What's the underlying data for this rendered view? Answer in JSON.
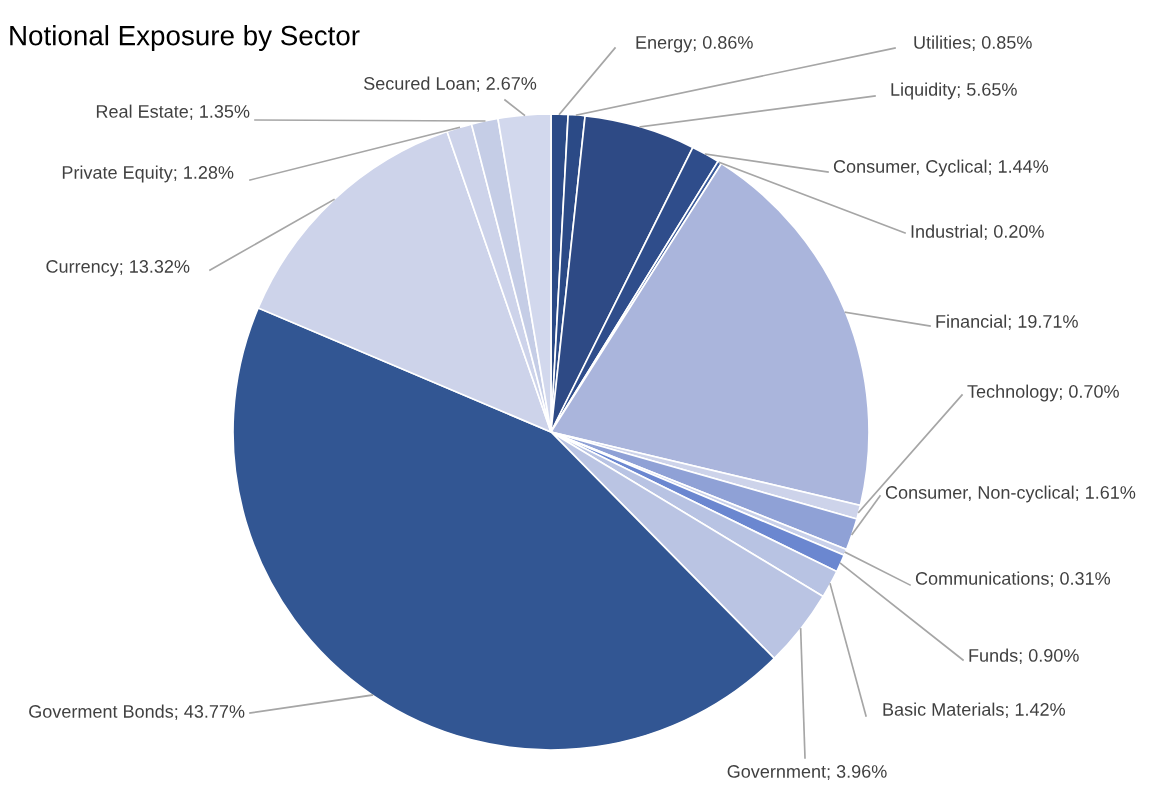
{
  "chart_data": {
    "type": "pie",
    "title": "Notional Exposure by Sector",
    "categories": [
      "Energy",
      "Utilities",
      "Liquidity",
      "Consumer, Cyclical",
      "Industrial",
      "Financial",
      "Technology",
      "Consumer, Non-cyclical",
      "Communications",
      "Funds",
      "Basic Materials",
      "Government",
      "Goverment Bonds",
      "Currency",
      "Private Equity",
      "Real Estate",
      "Secured Loan"
    ],
    "values": [
      0.86,
      0.85,
      5.65,
      1.44,
      0.2,
      19.71,
      0.7,
      1.61,
      0.31,
      0.9,
      1.42,
      3.96,
      43.77,
      13.32,
      1.28,
      1.35,
      2.67
    ],
    "value_labels": [
      "0.86%",
      "0.85%",
      "5.65%",
      "1.44%",
      "0.20%",
      "19.71%",
      "0.70%",
      "1.61%",
      "0.31%",
      "0.90%",
      "1.42%",
      "3.96%",
      "43.77%",
      "13.32%",
      "1.28%",
      "1.35%",
      "2.67%"
    ],
    "colors": [
      "#2b4a86",
      "#2b4a86",
      "#2e4a85",
      "#2f4d8b",
      "#3a5a9a",
      "#aab5dc",
      "#cdd3ea",
      "#8fa1d6",
      "#c8d0ea",
      "#6b87d0",
      "#b8c3e3",
      "#bac4e3",
      "#325693",
      "#cdd3ea",
      "#cdd3ea",
      "#c5cde6",
      "#d2d8ed"
    ]
  }
}
